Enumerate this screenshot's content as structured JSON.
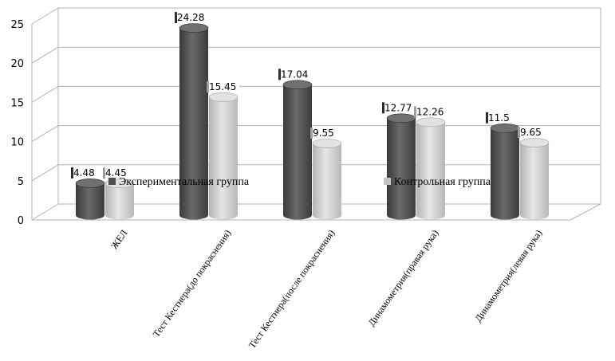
{
  "chart_data": {
    "type": "bar",
    "style": "3d-cylinder",
    "categories": [
      "ЖЕЛ",
      "Тест Кестнера(до покраснения)",
      "Тест Кестнера(после покраснения)",
      "Динамометрия(правая рука)",
      "Динамометрия(левая рука)"
    ],
    "series": [
      {
        "name": "Экспериментальная группа",
        "values": [
          4.48,
          24.28,
          17.04,
          12.77,
          11.5
        ],
        "labels": [
          "4.48",
          "24.28",
          "17.04",
          "12.77",
          "11.5"
        ],
        "color": "#4d4d4d"
      },
      {
        "name": "Контрольная группа",
        "values": [
          4.45,
          15.45,
          9.55,
          12.26,
          9.65
        ],
        "labels": [
          "4.45",
          "15.45",
          "9.55",
          "12.26",
          "9.65"
        ],
        "color": "#c4c4c4"
      }
    ],
    "ylim": [
      0,
      25
    ],
    "yticks": [
      "0",
      "5",
      "10",
      "15",
      "20",
      "25"
    ],
    "grid": true,
    "legend_position": "inside-middle"
  }
}
